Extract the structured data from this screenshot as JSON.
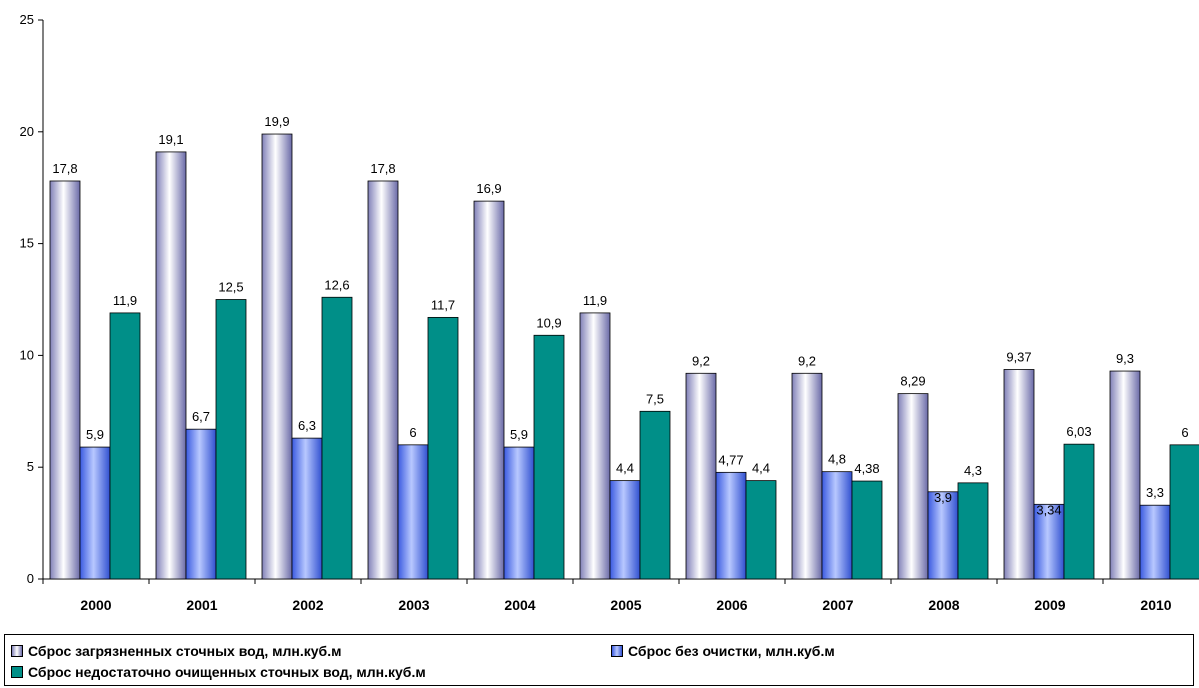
{
  "chart_data": {
    "type": "bar",
    "categories": [
      "2000",
      "2001",
      "2002",
      "2003",
      "2004",
      "2005",
      "2006",
      "2007",
      "2008",
      "2009",
      "2010"
    ],
    "series": [
      {
        "name": "Сброс загрязненных сточных вод, млн.куб.м",
        "values": [
          17.8,
          19.1,
          19.9,
          17.8,
          16.9,
          11.9,
          9.2,
          9.2,
          8.29,
          9.37,
          9.3
        ],
        "labels": [
          "17,8",
          "19,1",
          "19,9",
          "17,8",
          "16,9",
          "11,9",
          "9,2",
          "9,2",
          "8,29",
          "9,37",
          "9,3"
        ],
        "color": "#b8b8e0"
      },
      {
        "name": "Сброс без очистки, млн.куб.м",
        "values": [
          5.9,
          6.7,
          6.3,
          6,
          5.9,
          4.4,
          4.77,
          4.8,
          3.9,
          3.34,
          3.3
        ],
        "labels": [
          "5,9",
          "6,7",
          "6,3",
          "6",
          "5,9",
          "4,4",
          "4,77",
          "4,8",
          "3,9",
          "3,34",
          "3,3"
        ],
        "color": "#6b8af5"
      },
      {
        "name": "Сброс недостаточно очищенных сточных вод, млн.куб.м",
        "values": [
          11.9,
          12.5,
          12.6,
          11.7,
          10.9,
          7.5,
          4.4,
          4.38,
          4.3,
          6.03,
          6
        ],
        "labels": [
          "11,9",
          "12,5",
          "12,6",
          "11,7",
          "10,9",
          "7,5",
          "4,4",
          "4,38",
          "4,3",
          "6,03",
          "6"
        ],
        "color": "#008f88"
      }
    ],
    "y_ticks": [
      "0",
      "5",
      "10",
      "15",
      "20",
      "25"
    ],
    "ylim": [
      0,
      25
    ],
    "grid": false,
    "legend_position": "bottom"
  }
}
